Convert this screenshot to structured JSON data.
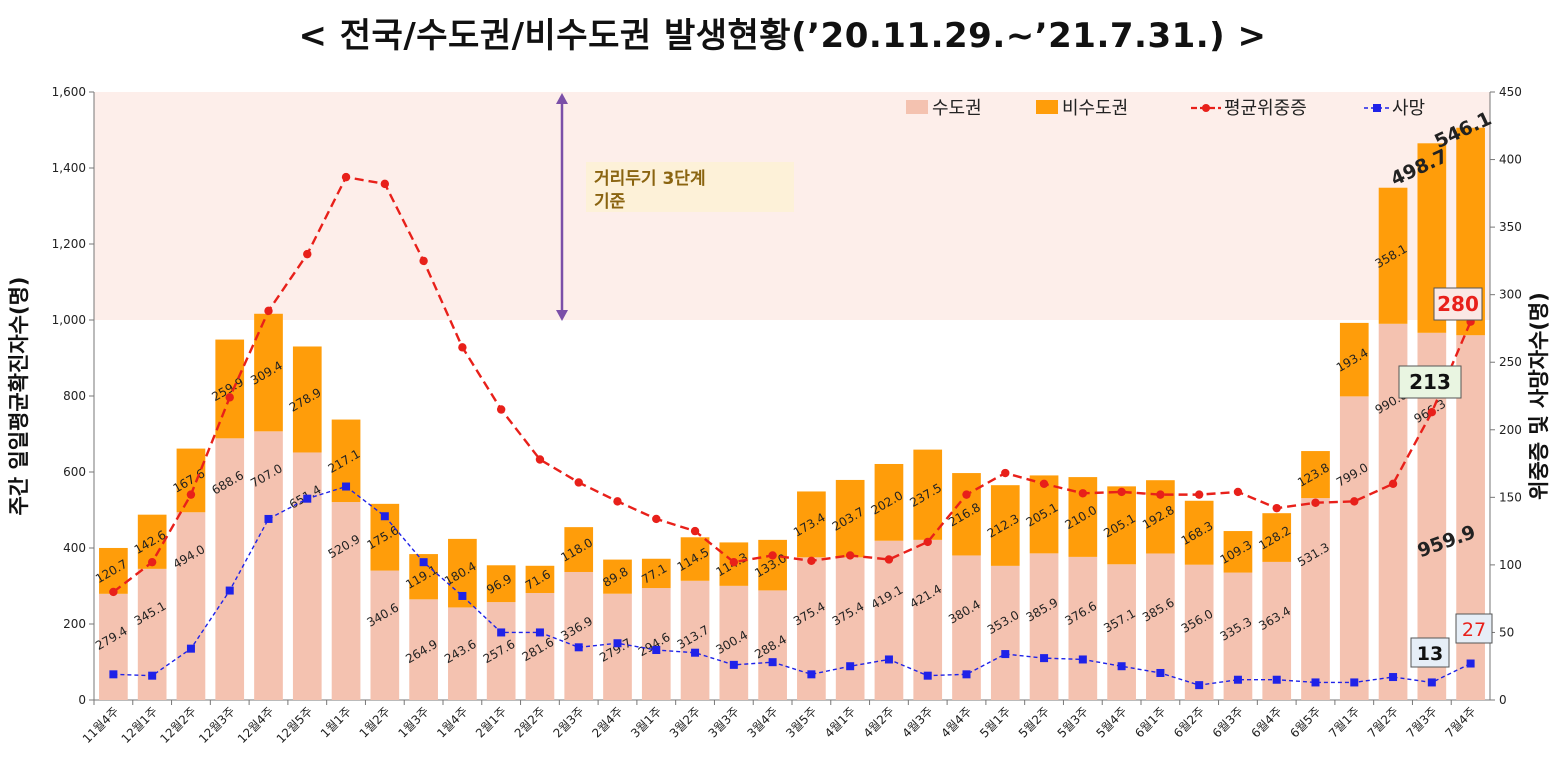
{
  "title": "< 전국/수도권/비수도권 발생현황(’20.11.29.~’21.7.31.) >",
  "chart_data": {
    "type": "bar",
    "stacked": true,
    "title": "< 전국/수도권/비수도권 발생현황(’20.11.29.~’21.7.31.) >",
    "categories": [
      "11월4주",
      "12월1주",
      "12월2주",
      "12월3주",
      "12월4주",
      "12월5주",
      "1월1주",
      "1월2주",
      "1월3주",
      "1월4주",
      "2월1주",
      "2월2주",
      "2월3주",
      "2월4주",
      "3월1주",
      "3월2주",
      "3월3주",
      "3월4주",
      "3월5주",
      "4월1주",
      "4월2주",
      "4월3주",
      "4월4주",
      "5월1주",
      "5월2주",
      "5월3주",
      "5월4주",
      "6월1주",
      "6월2주",
      "6월3주",
      "6월4주",
      "6월5주",
      "7월1주",
      "7월2주",
      "7월3주",
      "7월4주"
    ],
    "series": [
      {
        "name": "수도권",
        "axis": "left",
        "color": "#f4c2b0",
        "values": [
          279.4,
          345.1,
          494.0,
          688.6,
          707.0,
          651.4,
          520.9,
          340.6,
          264.9,
          243.6,
          257.6,
          281.6,
          336.9,
          279.7,
          294.6,
          313.7,
          300.4,
          288.4,
          375.4,
          375.4,
          419.1,
          421.4,
          380.4,
          353.0,
          385.9,
          376.6,
          357.1,
          385.6,
          356.0,
          335.3,
          363.4,
          531.3,
          799.0,
          990.0,
          966.3,
          959.9
        ],
        "labels": [
          "279.4",
          "345.1",
          "494.0",
          "688.6",
          "707.0",
          "651.4",
          "520.9",
          "340.6",
          "264.9",
          "243.6",
          "257.6",
          "281.6",
          "336.9",
          "279.7",
          "294.6",
          "313.7",
          "300.4",
          "288.4",
          "375.4",
          "375.4",
          "419.1",
          "421.4",
          "380.4",
          "353.0",
          "385.9",
          "376.6",
          "357.1",
          "385.6",
          "356.0",
          "335.3",
          "363.4",
          "531.3",
          "799.0",
          "990.0",
          "966.3",
          "959.9"
        ]
      },
      {
        "name": "비수도권",
        "axis": "left",
        "color": "#ff9d0a",
        "values": [
          120.7,
          142.6,
          167.6,
          259.9,
          309.4,
          278.9,
          217.1,
          175.6,
          119.1,
          180.4,
          96.9,
          71.6,
          118.0,
          89.8,
          77.1,
          114.5,
          114.3,
          133.0,
          173.4,
          203.7,
          202.0,
          237.5,
          216.8,
          212.3,
          205.1,
          210.0,
          205.1,
          192.8,
          168.3,
          109.3,
          128.2,
          123.8,
          193.4,
          358.1,
          498.7,
          546.1
        ],
        "labels": [
          "120.7",
          "142.6",
          "167.6",
          "259.9",
          "309.4",
          "278.9",
          "217.1",
          "175.6",
          "119.1",
          "180.4",
          "96.9",
          "71.6",
          "118.0",
          "89.8",
          "77.1",
          "114.5",
          "114.3",
          "133.0",
          "173.4",
          "203.7",
          "202.0",
          "237.5",
          "216.8",
          "212.3",
          "205.1",
          "210.0",
          "205.1",
          "192.8",
          "168.3",
          "109.3",
          "128.2",
          "123.8",
          "193.4",
          "358.1",
          "498.7",
          "546.1"
        ]
      },
      {
        "name": "평균위중증",
        "axis": "right",
        "type": "line",
        "color": "#e8201a",
        "values": [
          80,
          102,
          152,
          224,
          288,
          330,
          387,
          382,
          325,
          261,
          215,
          178,
          161,
          147,
          134,
          125,
          102,
          107,
          103,
          107,
          104,
          117,
          152,
          168,
          160,
          153,
          154,
          152,
          152,
          154,
          142,
          146,
          147,
          160,
          213,
          280
        ]
      },
      {
        "name": "사망",
        "axis": "right",
        "type": "line",
        "color": "#1f22e8",
        "values": [
          19,
          18,
          38,
          81,
          134,
          149,
          158,
          136,
          102,
          77,
          50,
          50,
          39,
          42,
          37,
          35,
          26,
          28,
          19,
          25,
          30,
          18,
          19,
          34,
          31,
          30,
          25,
          20,
          11,
          15,
          15,
          13,
          13,
          17,
          13,
          27
        ]
      }
    ],
    "ylabel": "주간 일일평균확진자수(명)",
    "ylabel_right": "위중증 및 사망자수(명)",
    "ylim": [
      0,
      1600
    ],
    "ylim_right": [
      0,
      450
    ],
    "yticks": [
      "0",
      "200",
      "400",
      "600",
      "800",
      "1,000",
      "1,200",
      "1,400",
      "1,600"
    ],
    "yticks_right": [
      "0",
      "50",
      "100",
      "150",
      "200",
      "250",
      "300",
      "350",
      "400",
      "450"
    ],
    "band_threshold": 1000,
    "annotation": {
      "line1": "거리두기 3단계",
      "line2": "기준"
    },
    "callouts": {
      "last_total": "546.1",
      "prev_total": "498.7",
      "last_metro": "959.9",
      "severe_prev": "213",
      "severe_last": "280",
      "death_prev": "13",
      "death_last": "27"
    },
    "legend": {
      "position": "top-right"
    }
  }
}
